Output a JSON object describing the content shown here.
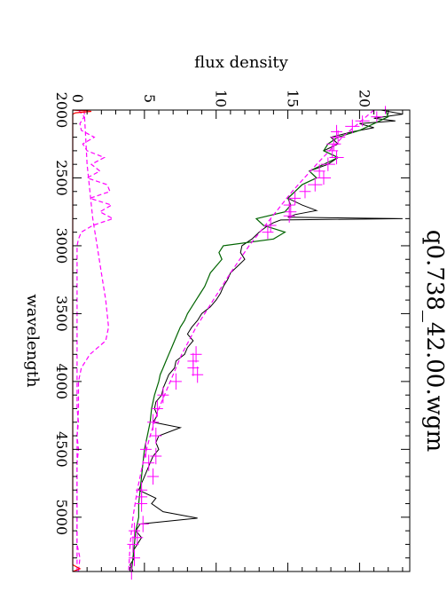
{
  "chart_data": {
    "type": "line",
    "title": "q0.738_42.00.wgm",
    "xlabel": "wavelength",
    "ylabel": "flux density",
    "xlim": [
      2000,
      5400
    ],
    "ylim": [
      0,
      23.5
    ],
    "x_ticks": [
      2000,
      2500,
      3000,
      3500,
      4000,
      4500,
      5000
    ],
    "y_ticks": [
      0,
      5,
      10,
      15,
      20
    ],
    "orientation": "rotated 90 degrees clockwise",
    "grid": false,
    "series": [
      {
        "color": "#000000",
        "style": "solid",
        "x": [
          2000,
          2030,
          2060,
          2080,
          2100,
          2130,
          2160,
          2200,
          2250,
          2300,
          2350,
          2400,
          2450,
          2500,
          2550,
          2600,
          2650,
          2700,
          2740,
          2770,
          2790,
          2800,
          2810,
          2830,
          2860,
          2900,
          2950,
          3000,
          3050,
          3100,
          3150,
          3200,
          3250,
          3300,
          3350,
          3400,
          3450,
          3500,
          3550,
          3600,
          3650,
          3700,
          3750,
          3800,
          3850,
          3900,
          3950,
          4000,
          4050,
          4100,
          4150,
          4200,
          4250,
          4300,
          4340,
          4400,
          4450,
          4500,
          4550,
          4600,
          4650,
          4700,
          4750,
          4800,
          4860,
          4900,
          4959,
          5007,
          5050,
          5100,
          5150,
          5200,
          5250,
          5300,
          5350,
          5400
        ],
        "values": [
          21.5,
          23,
          21,
          22.5,
          20,
          21,
          19.5,
          18,
          18.5,
          17.5,
          18.5,
          17.8,
          16.5,
          17,
          16,
          15.5,
          15,
          16,
          17,
          15.5,
          15,
          23,
          14.5,
          14,
          13.5,
          13,
          12.5,
          11.8,
          11.7,
          12,
          11.5,
          11,
          10.8,
          10.5,
          10.3,
          10,
          9.6,
          9,
          8.7,
          8.3,
          8,
          8.4,
          8,
          7.8,
          7.2,
          7.1,
          6.7,
          6.5,
          6.3,
          6.2,
          5.8,
          5.7,
          5.9,
          5.6,
          7.5,
          6,
          5.8,
          6,
          5.6,
          5.4,
          5.2,
          5,
          4.8,
          4.6,
          5.8,
          5.5,
          6.3,
          8.7,
          4.7,
          4.4,
          4.8,
          4.5,
          4.2,
          4.3,
          4,
          4.2
        ]
      },
      {
        "color": "#006400",
        "style": "solid",
        "x": [
          2000,
          2050,
          2100,
          2150,
          2200,
          2250,
          2300,
          2350,
          2400,
          2450,
          2500,
          2550,
          2600,
          2650,
          2700,
          2750,
          2800,
          2850,
          2900,
          2950,
          3000,
          3050,
          3100,
          3150,
          3200,
          3250,
          3300,
          3350,
          3400,
          3450,
          3500,
          3550,
          3600,
          3650,
          3700,
          3750,
          3800,
          3850,
          3900,
          3950,
          4000,
          4100,
          4200,
          4300,
          4400,
          4500,
          4600,
          4700,
          4800,
          4900,
          5000,
          5100,
          5200,
          5300,
          5400
        ],
        "values": [
          21.8,
          22,
          21,
          20,
          18.5,
          17.8,
          17.5,
          18.5,
          17.5,
          16.5,
          17,
          16,
          15.5,
          15,
          15.2,
          14.8,
          12.8,
          13.3,
          14.8,
          14,
          10.5,
          10.2,
          10.4,
          10,
          9.6,
          9.4,
          9.2,
          8.9,
          8.6,
          8.3,
          8,
          7.8,
          7.5,
          7.3,
          7.1,
          6.9,
          6.7,
          6.5,
          6.3,
          6.1,
          6,
          5.7,
          5.5,
          5.4,
          5.2,
          5,
          4.9,
          4.8,
          4.7,
          4.6,
          4.6,
          4.4,
          4.3,
          4.2,
          4.1
        ]
      },
      {
        "color": "#ff00ff",
        "style": "dashed",
        "x": [
          2000,
          2200,
          2400,
          2600,
          2800,
          3000,
          3200,
          3400,
          3600,
          3800,
          4000,
          4200,
          4400,
          4600,
          4800,
          5000,
          5200,
          5400
        ],
        "values": [
          21,
          18.8,
          17,
          15.3,
          13.8,
          12.3,
          11,
          9.8,
          8.6,
          7.6,
          6.8,
          6,
          5.4,
          4.9,
          4.5,
          4.2,
          4,
          3.9
        ]
      },
      {
        "color": "#ff00ff",
        "style": "dashed",
        "x": [
          2000,
          2050,
          2100,
          2150,
          2200,
          2250,
          2300,
          2350,
          2400,
          2450,
          2500,
          2550,
          2600,
          2650,
          2700,
          2750,
          2800,
          2850,
          2900,
          2950,
          3000,
          3100,
          3200,
          3300,
          3400,
          3500,
          3600,
          3700,
          3800,
          3900,
          4000,
          4100,
          4200,
          4300,
          4400,
          4500,
          4600,
          4700,
          4800,
          4900,
          5000,
          5100,
          5200,
          5300,
          5400
        ],
        "values": [
          0.4,
          0.8,
          0.5,
          0.6,
          1.5,
          0.7,
          1,
          2.2,
          1.3,
          1.9,
          1,
          2.4,
          2.6,
          1.2,
          2.7,
          1.9,
          2.8,
          1.4,
          0.6,
          0.4,
          0.3,
          0.3,
          0.3,
          0.3,
          0.3,
          0.3,
          0.3,
          0.3,
          0.3,
          0.3,
          0.3,
          0.3,
          0.3,
          0.4,
          0.3,
          0.4,
          0.3,
          0.3,
          0.3,
          0.3,
          0.3,
          0.3,
          0.3,
          0.5,
          0.4
        ]
      },
      {
        "color": "#ff00ff",
        "style": "dashed",
        "x": [
          2000,
          2200,
          2400,
          2600,
          2800,
          3000,
          3200,
          3400,
          3600,
          3700,
          3800,
          3900,
          4000,
          4200,
          4400,
          4600,
          4800,
          5000,
          5200,
          5400
        ],
        "values": [
          0.8,
          0.9,
          1,
          1.2,
          1.4,
          1.7,
          2,
          2.3,
          2.5,
          2.3,
          1.2,
          0.6,
          0.4,
          0.4,
          0.3,
          0.3,
          0.3,
          0.3,
          0.3,
          0.3
        ]
      },
      {
        "color": "#ff0000",
        "style": "solid",
        "x": [
          2000,
          2010,
          2020,
          2030,
          5350,
          5380,
          5400
        ],
        "values": [
          0,
          1.3,
          0.2,
          0,
          0,
          0.5,
          0
        ]
      }
    ],
    "error_bars": {
      "color": "#ff00ff",
      "x": [
        2000,
        2050,
        2080,
        2120,
        2160,
        2200,
        2250,
        2300,
        2350,
        2400,
        2450,
        2500,
        2550,
        2600,
        2650,
        2700,
        2750,
        2780,
        2850,
        2900,
        3800,
        3850,
        3900,
        3950,
        4000,
        4100,
        4200,
        4300,
        4400,
        4500,
        4550,
        4600,
        4700,
        4800,
        4850,
        4900,
        5050,
        5100,
        5150,
        5200,
        5300,
        5400
      ],
      "values": [
        21.8,
        21.2,
        20.2,
        19.5,
        18.4,
        18.5,
        18.2,
        18.1,
        18.4,
        17.8,
        17.2,
        17.5,
        16.9,
        16.2,
        15.5,
        15.1,
        15.2,
        15.1,
        13.8,
        13.6,
        8.6,
        8.4,
        8.4,
        8.7,
        7.2,
        6.3,
        5.9,
        5.6,
        5.8,
        5.1,
        5.8,
        5.3,
        5.6,
        4.8,
        4.8,
        4.8,
        4.9,
        4.3,
        4.5,
        4.2,
        4.3,
        4.1
      ],
      "yerr": [
        0.5,
        0.4,
        0.5,
        0.5,
        0.4,
        0.5,
        0.5,
        0.4,
        0.5,
        0.5,
        0.4,
        0.5,
        0.5,
        0.4,
        0.4,
        0.4,
        0.4,
        0.4,
        0.4,
        0.4,
        0.4,
        0.4,
        0.4,
        0.4,
        0.4,
        0.4,
        0.4,
        0.4,
        0.4,
        0.4,
        0.4,
        0.4,
        0.4,
        0.4,
        0.4,
        0.4,
        0.4,
        0.4,
        0.4,
        0.4,
        0.4,
        0.4
      ],
      "xerr": [
        30,
        40,
        40,
        50,
        50,
        50,
        50,
        50,
        50,
        50,
        50,
        50,
        50,
        50,
        50,
        50,
        50,
        50,
        50,
        50,
        60,
        60,
        60,
        60,
        60,
        60,
        60,
        60,
        60,
        60,
        60,
        60,
        60,
        60,
        60,
        60,
        60,
        60,
        60,
        60,
        60,
        60
      ]
    }
  }
}
